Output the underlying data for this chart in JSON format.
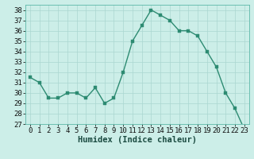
{
  "x": [
    0,
    1,
    2,
    3,
    4,
    5,
    6,
    7,
    8,
    9,
    10,
    11,
    12,
    13,
    14,
    15,
    16,
    17,
    18,
    19,
    20,
    21,
    22,
    23
  ],
  "y": [
    31.5,
    31.0,
    29.5,
    29.5,
    30.0,
    30.0,
    29.5,
    30.5,
    29.0,
    29.5,
    32.0,
    35.0,
    36.5,
    38.0,
    37.5,
    37.0,
    36.0,
    36.0,
    35.5,
    34.0,
    32.5,
    30.0,
    28.5,
    26.5
  ],
  "line_color": "#2d8b72",
  "marker_color": "#2d8b72",
  "bg_color": "#cceee8",
  "grid_color": "#aad6d0",
  "xlabel": "Humidex (Indice chaleur)",
  "xlim": [
    -0.5,
    23.5
  ],
  "ylim": [
    27,
    38.5
  ],
  "yticks": [
    27,
    28,
    29,
    30,
    31,
    32,
    33,
    34,
    35,
    36,
    37,
    38
  ],
  "xticks": [
    0,
    1,
    2,
    3,
    4,
    5,
    6,
    7,
    8,
    9,
    10,
    11,
    12,
    13,
    14,
    15,
    16,
    17,
    18,
    19,
    20,
    21,
    22,
    23
  ],
  "tick_label_fontsize": 6.5,
  "xlabel_fontsize": 7.5,
  "line_width": 1.0,
  "marker_size": 2.5
}
